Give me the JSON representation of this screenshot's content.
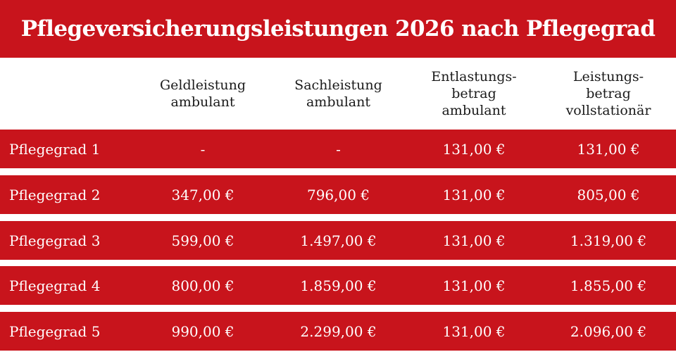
{
  "title": "Pflegeversicherungsleistungen 2026 nach Pflegegrad",
  "colors": {
    "accent_red": "#c8141c",
    "text_on_red": "#ffffff",
    "header_text": "#1a1a1a",
    "background": "#ffffff"
  },
  "table": {
    "headers": [
      "Geldleistung\nambulant",
      "Sachleistung\nambulant",
      "Entlastungs-\nbetrag\nambulant",
      "Leistungs-\nbetrag\nvollstationär"
    ],
    "rows": [
      {
        "label": "Pflegegrad 1",
        "values": [
          "-",
          "-",
          "131,00 €",
          "131,00 €"
        ]
      },
      {
        "label": "Pflegegrad 2",
        "values": [
          "347,00 €",
          "796,00 €",
          "131,00 €",
          "805,00 €"
        ]
      },
      {
        "label": "Pflegegrad 3",
        "values": [
          "599,00 €",
          "1.497,00 €",
          "131,00 €",
          "1.319,00 €"
        ]
      },
      {
        "label": "Pflegegrad 4",
        "values": [
          "800,00 €",
          "1.859,00 €",
          "131,00 €",
          "1.855,00 €"
        ]
      },
      {
        "label": "Pflegegrad 5",
        "values": [
          "990,00 €",
          "2.299,00 €",
          "131,00 €",
          "2.096,00 €"
        ]
      }
    ]
  }
}
